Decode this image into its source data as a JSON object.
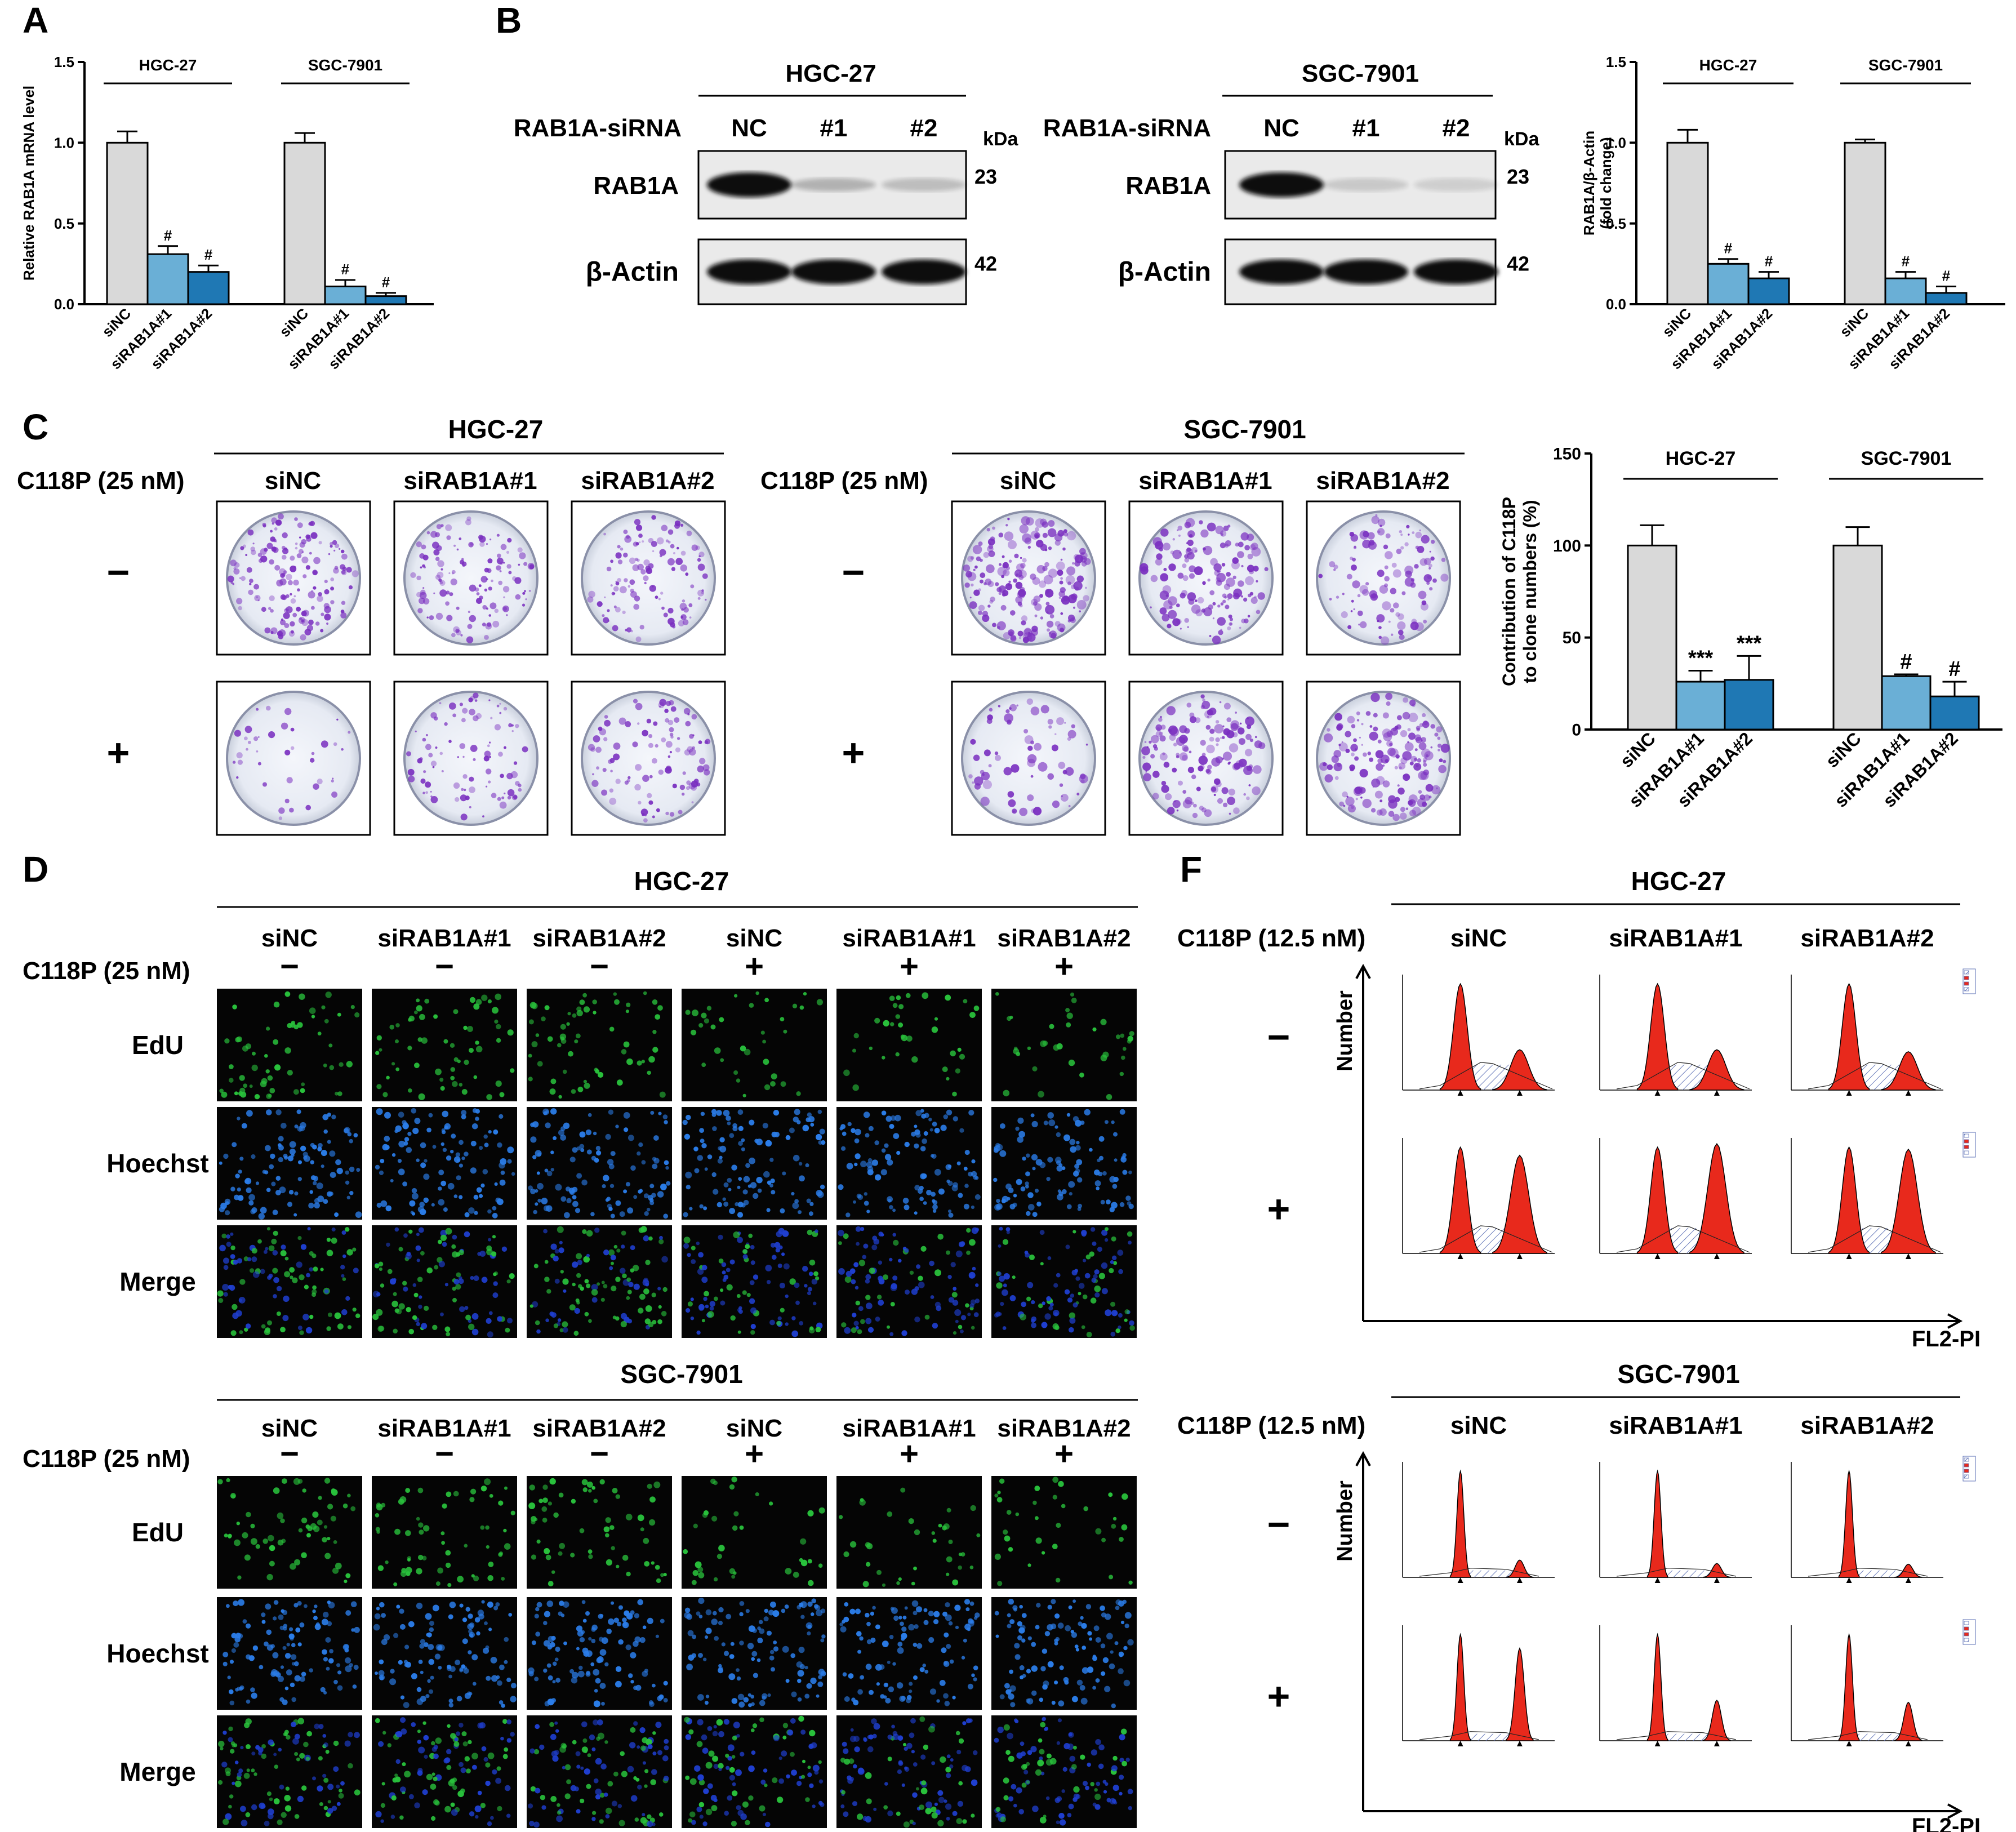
{
  "panels": {
    "A": "A",
    "B": "B",
    "C": "C",
    "D": "D",
    "F": "F"
  },
  "colors": {
    "nc": "#d9d9d9",
    "s1": "#6aafd6",
    "s2": "#1f78b4",
    "flow_fill": "#e8291c",
    "hatch": "#5b6fb5",
    "wb_bg": "#eaeaea",
    "band": "#111111",
    "crystal": "#7a2fc0",
    "edu": "#29c23c",
    "hoechst": "#2b7de9",
    "merge_blue": "#1f3fd0",
    "cell_bg": "#050505"
  },
  "panel_a": {
    "ylabel": "Relative RAB1A mRNA level",
    "groups": [
      "HGC-27",
      "SGC-7901"
    ],
    "xticks": [
      "siNC",
      "siRAB1A#1",
      "siRAB1A#2"
    ],
    "yticks": [
      "0.0",
      "0.5",
      "1.0",
      "1.5"
    ],
    "sig": "#"
  },
  "panel_b": {
    "blots": [
      {
        "cell": "HGC-27",
        "row_label": "RAB1A-siRNA",
        "lanes": [
          "NC",
          "#1",
          "#2"
        ],
        "kda": "kDa",
        "bands": [
          {
            "name": "RAB1A",
            "mw": "23"
          },
          {
            "name": "β-Actin",
            "mw": "42"
          }
        ]
      },
      {
        "cell": "SGC-7901",
        "row_label": "RAB1A-siRNA",
        "lanes": [
          "NC",
          "#1",
          "#2"
        ],
        "kda": "kDa",
        "bands": [
          {
            "name": "RAB1A",
            "mw": "23"
          },
          {
            "name": "β-Actin",
            "mw": "42"
          }
        ]
      }
    ],
    "chart": {
      "ylabel1": "RAB1A/β-Actin",
      "ylabel2": "(fold change)",
      "groups": [
        "HGC-27",
        "SGC-7901"
      ],
      "xticks": [
        "siNC",
        "siRAB1A#1",
        "siRAB1A#2"
      ],
      "yticks": [
        "0.0",
        "0.5",
        "1.0",
        "1.5"
      ],
      "sig": "#"
    }
  },
  "panel_c": {
    "treatment": "C118P (25 nM)",
    "cells": [
      {
        "name": "HGC-27",
        "cols": [
          "siNC",
          "siRAB1A#1",
          "siRAB1A#2"
        ]
      },
      {
        "name": "SGC-7901",
        "cols": [
          "siNC",
          "siRAB1A#1",
          "siRAB1A#2"
        ]
      }
    ],
    "rows": [
      "−",
      "+"
    ],
    "chart": {
      "ylabel1": "Contribution of C118P",
      "ylabel2": "to clone numbers (%)",
      "groups": [
        "HGC-27",
        "SGC-7901"
      ],
      "xticks": [
        "siNC",
        "siRAB1A#1",
        "siRAB1A#2"
      ],
      "yticks": [
        "0",
        "50",
        "100",
        "150"
      ],
      "sig_hgc": "***",
      "sig_sgc": "#"
    }
  },
  "panel_d": {
    "treatment": "C118P (25 nM)",
    "blocks": [
      {
        "cell": "HGC-27"
      },
      {
        "cell": "SGC-7901"
      }
    ],
    "cols": [
      "siNC",
      "siRAB1A#1",
      "siRAB1A#2",
      "siNC",
      "siRAB1A#1",
      "siRAB1A#2"
    ],
    "signs": [
      "−",
      "−",
      "−",
      "+",
      "+",
      "+"
    ],
    "rows": [
      "EdU",
      "Hoechst",
      "Merge"
    ]
  },
  "panel_f": {
    "treatment": "C118P (12.5 nM)",
    "blocks": [
      {
        "cell": "HGC-27"
      },
      {
        "cell": "SGC-7901"
      }
    ],
    "cols": [
      "siNC",
      "siRAB1A#1",
      "siRAB1A#2"
    ],
    "rows": [
      "−",
      "+"
    ],
    "yaxis": "Number",
    "xaxis": "FL2-PI"
  },
  "chart_data": [
    {
      "type": "bar",
      "panel": "A",
      "ylabel": "Relative RAB1A mRNA level",
      "ylim": [
        0,
        1.5
      ],
      "groups": [
        "HGC-27",
        "SGC-7901"
      ],
      "categories": [
        "siNC",
        "siRAB1A#1",
        "siRAB1A#2"
      ],
      "series": [
        {
          "name": "HGC-27",
          "values": [
            1.0,
            0.31,
            0.2
          ],
          "errors": [
            0.07,
            0.05,
            0.04
          ]
        },
        {
          "name": "SGC-7901",
          "values": [
            1.0,
            0.11,
            0.05
          ],
          "errors": [
            0.06,
            0.04,
            0.02
          ]
        }
      ]
    },
    {
      "type": "bar",
      "panel": "B",
      "ylabel": "RAB1A/β-Actin (fold change)",
      "ylim": [
        0,
        1.5
      ],
      "groups": [
        "HGC-27",
        "SGC-7901"
      ],
      "categories": [
        "siNC",
        "siRAB1A#1",
        "siRAB1A#2"
      ],
      "series": [
        {
          "name": "HGC-27",
          "values": [
            1.0,
            0.25,
            0.16
          ],
          "errors": [
            0.08,
            0.03,
            0.04
          ]
        },
        {
          "name": "SGC-7901",
          "values": [
            1.0,
            0.16,
            0.07
          ],
          "errors": [
            0.02,
            0.04,
            0.04
          ]
        }
      ]
    },
    {
      "type": "bar",
      "panel": "C",
      "ylabel": "Contribution of C118P to clone numbers (%)",
      "ylim": [
        0,
        150
      ],
      "groups": [
        "HGC-27",
        "SGC-7901"
      ],
      "categories": [
        "siNC",
        "siRAB1A#1",
        "siRAB1A#2"
      ],
      "series": [
        {
          "name": "HGC-27",
          "values": [
            100,
            26,
            27
          ],
          "errors": [
            11,
            6,
            13
          ]
        },
        {
          "name": "SGC-7901",
          "values": [
            100,
            29,
            18
          ],
          "errors": [
            10,
            1,
            8
          ]
        }
      ]
    }
  ]
}
